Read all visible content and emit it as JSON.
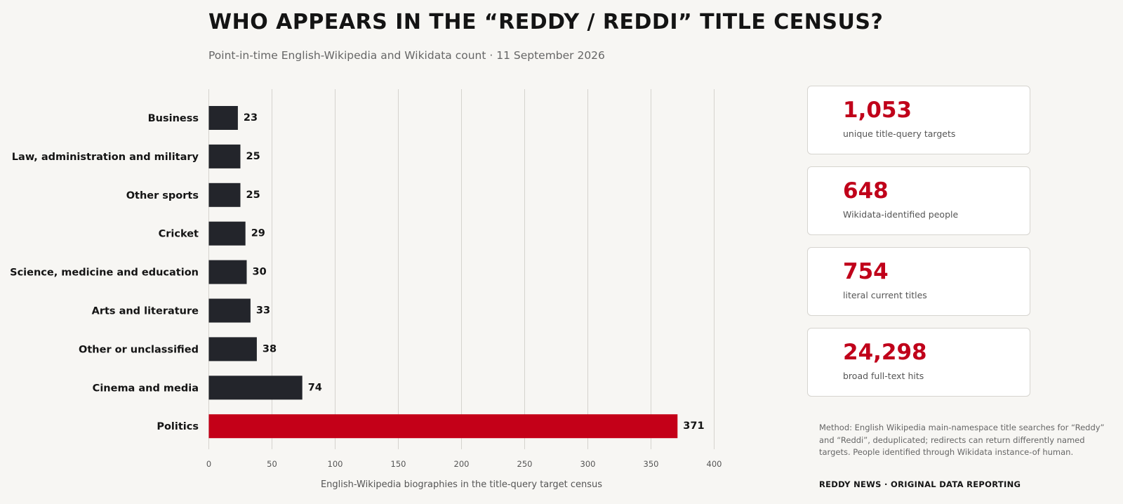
{
  "header": {
    "title": "WHO APPEARS IN THE “REDDY / REDDI” TITLE CENSUS?",
    "subtitle": "Point-in-time English-Wikipedia and Wikidata count · 11 September 2026"
  },
  "colors": {
    "bar_default": "#23252b",
    "bar_highlight": "#c40018",
    "stat_value": "#c0001a",
    "background": "#f7f6f3"
  },
  "chart_data": {
    "type": "bar",
    "orientation": "horizontal",
    "categories": [
      "Business",
      "Law, administration and military",
      "Other sports",
      "Cricket",
      "Science, medicine and education",
      "Arts and literature",
      "Other or unclassified",
      "Cinema and media",
      "Politics"
    ],
    "values": [
      23,
      25,
      25,
      29,
      30,
      33,
      38,
      74,
      371
    ],
    "highlight_category": "Politics",
    "xlabel": "English-Wikipedia biographies in the title-query target census",
    "ylabel": "",
    "xlim": [
      0,
      400
    ],
    "xticks": [
      0,
      50,
      100,
      150,
      200,
      250,
      300,
      350,
      400
    ],
    "grid": "vertical",
    "data_labels": true
  },
  "stats": [
    {
      "value": "1,053",
      "label": "unique title-query targets"
    },
    {
      "value": "648",
      "label": "Wikidata-identified people"
    },
    {
      "value": "754",
      "label": "literal current titles"
    },
    {
      "value": "24,298",
      "label": "broad full-text hits"
    }
  ],
  "footer": {
    "method": "Method: English Wikipedia main-namespace title searches for “Reddy” and “Reddi”, deduplicated; redirects can return differently named targets. People identified through Wikidata instance-of human.",
    "credit": "REDDY NEWS · ORIGINAL DATA REPORTING"
  }
}
